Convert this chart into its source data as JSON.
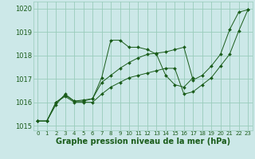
{
  "xlabel": "Graphe pression niveau de la mer (hPa)",
  "xlabel_fontsize": 7,
  "bg_color": "#cce8e8",
  "grid_color": "#99ccbb",
  "line_color": "#1a5c1a",
  "markersize": 2.0,
  "ylim": [
    1014.8,
    1020.3
  ],
  "xlim": [
    -0.5,
    23.5
  ],
  "yticks": [
    1015,
    1016,
    1017,
    1018,
    1019,
    1020
  ],
  "xticks": [
    0,
    1,
    2,
    3,
    4,
    5,
    6,
    7,
    8,
    9,
    10,
    11,
    12,
    13,
    14,
    15,
    16,
    17,
    18,
    19,
    20,
    21,
    22,
    23
  ],
  "series": [
    [
      1015.2,
      1015.2,
      1015.9,
      1016.35,
      1016.05,
      1016.05,
      1016.15,
      1017.05,
      1018.65,
      1018.65,
      1018.35,
      1018.35,
      1018.25,
      1018.05,
      1017.15,
      1016.75,
      1016.65,
      1017.05
    ],
    [
      1015.2,
      1015.2,
      1016.0,
      1016.3,
      1016.05,
      1016.1,
      1016.15,
      1016.85,
      1017.15,
      1017.45,
      1017.7,
      1017.9,
      1018.05,
      1018.1,
      1018.15,
      1018.25,
      1018.35,
      1016.95,
      1017.15,
      1017.55,
      1018.05,
      1019.1,
      1019.85,
      1019.95
    ],
    [
      1015.2,
      1015.2,
      1016.0,
      1016.25,
      1016.0,
      1016.0,
      1016.0,
      1016.35,
      1016.65,
      1016.85,
      1017.05,
      1017.15,
      1017.25,
      1017.35,
      1017.45,
      1017.45,
      1016.35,
      1016.45,
      1016.75,
      1017.05,
      1017.55,
      1018.05,
      1019.05,
      1019.95
    ]
  ]
}
